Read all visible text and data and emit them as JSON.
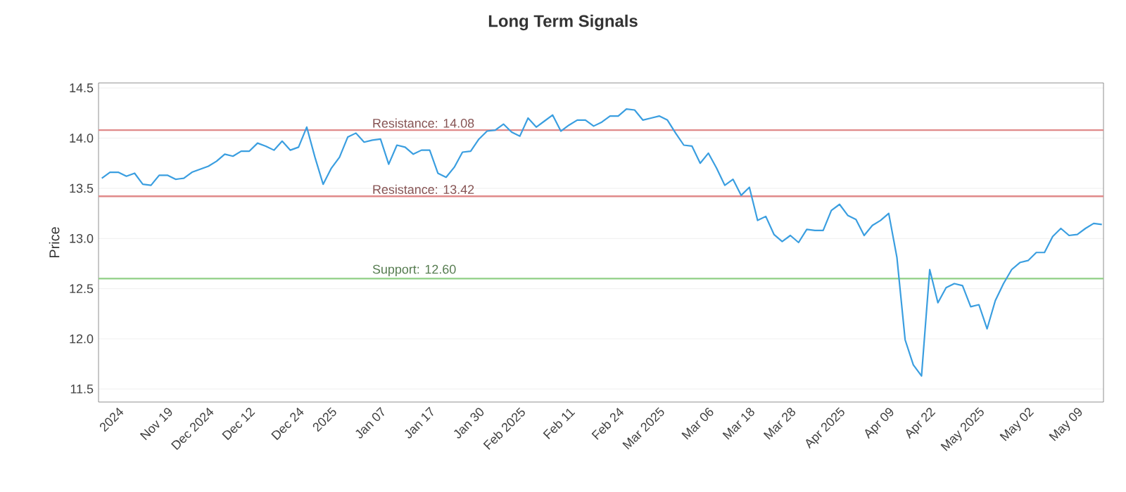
{
  "chart_data": {
    "type": "line",
    "title": "Long Term Signals",
    "ylabel": "Price",
    "categories": [
      null,
      null,
      "2024",
      null,
      null,
      null,
      null,
      null,
      "Nov 19",
      null,
      null,
      null,
      null,
      "Dec 2024",
      null,
      null,
      null,
      null,
      "Dec 12",
      null,
      null,
      null,
      null,
      null,
      "Dec 24",
      null,
      null,
      null,
      "2025",
      null,
      null,
      null,
      null,
      null,
      "Jan 07",
      null,
      null,
      null,
      null,
      null,
      "Jan 17",
      null,
      null,
      null,
      null,
      null,
      "Jan 30",
      null,
      null,
      null,
      null,
      "Feb 2025",
      null,
      null,
      null,
      null,
      null,
      "Feb 11",
      null,
      null,
      null,
      null,
      null,
      "Feb 24",
      null,
      null,
      null,
      null,
      "Mar 2025",
      null,
      null,
      null,
      null,
      null,
      "Mar 06",
      null,
      null,
      null,
      null,
      "Mar 18",
      null,
      null,
      null,
      null,
      "Mar 28",
      null,
      null,
      null,
      null,
      null,
      "Apr 2025",
      null,
      null,
      null,
      null,
      null,
      "Apr 09",
      null,
      null,
      null,
      null,
      "Apr 22",
      null,
      null,
      null,
      null,
      null,
      "May 2025",
      null,
      null,
      null,
      null,
      null,
      "May 02",
      null,
      null,
      null,
      null,
      null,
      "May 09",
      null,
      null,
      null
    ],
    "series": [
      {
        "color": "#3a9ee0",
        "values": [
          13.6,
          13.66,
          13.66,
          13.62,
          13.65,
          13.54,
          13.53,
          13.63,
          13.63,
          13.59,
          13.6,
          13.66,
          13.69,
          13.72,
          13.77,
          13.84,
          13.82,
          13.87,
          13.87,
          13.95,
          13.92,
          13.88,
          13.97,
          13.88,
          13.91,
          14.11,
          13.81,
          13.54,
          13.7,
          13.81,
          14.01,
          14.05,
          13.96,
          13.98,
          13.99,
          13.74,
          13.93,
          13.91,
          13.84,
          13.88,
          13.88,
          13.65,
          13.61,
          13.71,
          13.86,
          13.87,
          13.99,
          14.07,
          14.08,
          14.14,
          14.06,
          14.02,
          14.2,
          14.11,
          14.17,
          14.23,
          14.07,
          14.13,
          14.18,
          14.18,
          14.12,
          14.16,
          14.22,
          14.22,
          14.29,
          14.28,
          14.18,
          14.2,
          14.22,
          14.18,
          14.05,
          13.93,
          13.92,
          13.75,
          13.85,
          13.7,
          13.53,
          13.59,
          13.43,
          13.51,
          13.18,
          13.22,
          13.04,
          12.97,
          13.03,
          12.96,
          13.09,
          13.08,
          13.08,
          13.28,
          13.34,
          13.23,
          13.19,
          13.03,
          13.13,
          13.18,
          13.25,
          12.81,
          11.99,
          11.74,
          11.63,
          12.69,
          12.36,
          12.51,
          12.55,
          12.53,
          12.32,
          12.34,
          12.1,
          12.38,
          12.55,
          12.69,
          12.76,
          12.78,
          12.86,
          12.86,
          13.02,
          13.1,
          13.03,
          13.04,
          13.1,
          13.15,
          13.14
        ]
      }
    ],
    "ylim": [
      11.37,
      14.55
    ],
    "yticks": [
      11.5,
      {
        "value": 12,
        "label": "12.0"
      },
      12.5,
      {
        "value": 13,
        "label": "13.0"
      },
      13.5,
      {
        "value": 14,
        "label": "14.0"
      },
      14.5
    ],
    "grid": "y",
    "ref_lines": [
      {
        "axis": "y",
        "value": 14.08,
        "label": "Resistance: 14.08",
        "color": "#e08a8a"
      },
      {
        "axis": "y",
        "value": 13.42,
        "label": "Resistance: 13.42",
        "color": "#e08a8a"
      },
      {
        "axis": "y",
        "value": 12.6,
        "label": "Support: 12.60",
        "color": "#8fcf85"
      }
    ]
  }
}
